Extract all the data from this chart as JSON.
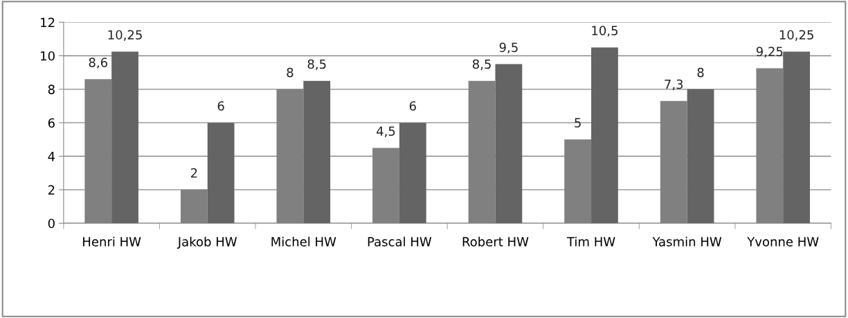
{
  "chart_data": {
    "type": "bar",
    "categories": [
      "Henri HW",
      "Jakob HW",
      "Michel HW",
      "Pascal HW",
      "Robert HW",
      "Tim HW",
      "Yasmin HW",
      "Yvonne HW"
    ],
    "series": [
      {
        "color": "#808080",
        "values": [
          8.6,
          2,
          8,
          4.5,
          8.5,
          5,
          7.3,
          9.25
        ],
        "value_labels": [
          "8,6",
          "2",
          "8",
          "4,5",
          "8,5",
          "5",
          "7,3",
          "9,25"
        ]
      },
      {
        "color": "#646464",
        "values": [
          10.25,
          6,
          8.5,
          6,
          9.5,
          10.5,
          8,
          10.25
        ],
        "value_labels": [
          "10,25",
          "6",
          "8,5",
          "6",
          "9,5",
          "10,5",
          "8",
          "10,25"
        ]
      }
    ],
    "ylim": [
      0,
      12
    ],
    "yticks": [
      0,
      2,
      4,
      6,
      8,
      10,
      12
    ],
    "grid": "y"
  }
}
